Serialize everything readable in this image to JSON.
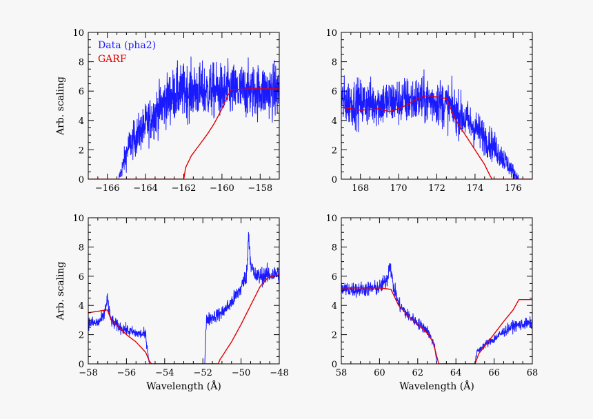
{
  "chart_data": [
    {
      "type": "line",
      "title": "",
      "xlabel": "",
      "ylabel": "Arb. scaling",
      "xlim": [
        -167,
        -157
      ],
      "ylim": [
        0,
        10
      ],
      "xticks": [
        -166,
        -164,
        -162,
        -160,
        -158
      ],
      "yticks": [
        0,
        2,
        4,
        6,
        8,
        10
      ],
      "legend": {
        "position": "top-left",
        "entries": [
          "Data (pha2)",
          "GARF"
        ]
      },
      "series": [
        {
          "name": "Data (pha2)",
          "color": "#1a1aff",
          "noise": 1.6,
          "x": [
            -165.4,
            -164.9,
            -164.3,
            -163.8,
            -163.3,
            -162.8,
            -162.3,
            -161.8,
            -161.3,
            -160.8,
            -160.3,
            -159.8,
            -159.3,
            -158.8,
            -158.3,
            -157.8,
            -157.0
          ],
          "y": [
            0.0,
            2.2,
            3.2,
            4.0,
            4.8,
            5.5,
            5.9,
            6.0,
            6.0,
            6.0,
            6.0,
            6.0,
            6.0,
            6.0,
            6.0,
            6.0,
            6.0
          ]
        },
        {
          "name": "GARF",
          "color": "#e00000",
          "x": [
            -167,
            -162.0,
            -161.9,
            -161.6,
            -161.2,
            -160.8,
            -160.4,
            -160.0,
            -159.7,
            -159.5,
            -158.5,
            -157.0
          ],
          "y": [
            0,
            0,
            0.8,
            1.6,
            2.3,
            3.0,
            3.8,
            4.8,
            5.7,
            6.1,
            6.15,
            6.15
          ]
        }
      ]
    },
    {
      "type": "line",
      "title": "",
      "xlabel": "",
      "ylabel": "",
      "xlim": [
        167,
        177
      ],
      "ylim": [
        0,
        10
      ],
      "xticks": [
        168,
        170,
        172,
        174,
        176
      ],
      "yticks": [
        0,
        2,
        4,
        6,
        8,
        10
      ],
      "series": [
        {
          "name": "Data (pha2)",
          "color": "#1a1aff",
          "noise": 1.5,
          "x": [
            167.0,
            168.0,
            169.0,
            170.0,
            171.0,
            172.0,
            172.6,
            173.2,
            173.8,
            174.4,
            175.0,
            175.5,
            176.0,
            176.3
          ],
          "y": [
            5.3,
            5.2,
            5.2,
            5.3,
            5.4,
            5.3,
            5.0,
            4.4,
            3.7,
            3.0,
            2.2,
            1.4,
            0.5,
            0.0
          ]
        },
        {
          "name": "GARF",
          "color": "#e00000",
          "x": [
            167.0,
            168.0,
            169.0,
            169.5,
            170.0,
            170.5,
            171.0,
            171.5,
            172.0,
            172.5,
            173.0,
            173.5,
            174.0,
            174.5,
            174.8,
            174.9,
            177.0
          ],
          "y": [
            4.9,
            4.7,
            4.8,
            4.6,
            4.8,
            5.1,
            5.5,
            5.7,
            5.6,
            5.5,
            4.0,
            3.0,
            2.0,
            1.0,
            0.2,
            0.0,
            0.0
          ]
        }
      ]
    },
    {
      "type": "line",
      "title": "",
      "xlabel": "Wavelength (Å)",
      "ylabel": "Arb. scaling",
      "xlim": [
        -58,
        -48
      ],
      "ylim": [
        0,
        10
      ],
      "xticks": [
        -58,
        -56,
        -54,
        -52,
        -50,
        -48
      ],
      "yticks": [
        0,
        2,
        4,
        6,
        8,
        10
      ],
      "series": [
        {
          "name": "Data (pha2)",
          "color": "#1a1aff",
          "noise": 0.55,
          "x": [
            -58.0,
            -57.5,
            -57.2,
            -57.0,
            -56.9,
            -56.8,
            -56.6,
            -56.0,
            -55.5,
            -55.0,
            -54.9,
            -54.8,
            -51.9,
            -51.85,
            -51.8,
            -51.0,
            -50.5,
            -50.0,
            -49.7,
            -49.6,
            -49.5,
            -49.3,
            -49.0,
            -48.0
          ],
          "y": [
            2.8,
            2.8,
            3.2,
            4.5,
            3.5,
            3.0,
            2.7,
            2.3,
            2.1,
            2.0,
            1.0,
            0.0,
            0.0,
            2.0,
            3.0,
            3.5,
            4.2,
            5.2,
            6.2,
            9.0,
            7.0,
            6.0,
            6.0,
            6.2
          ]
        },
        {
          "name": "GARF",
          "color": "#e00000",
          "x": [
            -58.0,
            -57.5,
            -57.0,
            -56.8,
            -56.0,
            -55.5,
            -55.0,
            -54.8,
            -54.7,
            -51.2,
            -51.1,
            -50.5,
            -50.0,
            -49.5,
            -49.0,
            -48.6,
            -48.0
          ],
          "y": [
            3.5,
            3.6,
            3.7,
            3.0,
            2.0,
            1.5,
            0.8,
            0.2,
            0.0,
            0.0,
            0.3,
            1.5,
            2.7,
            4.0,
            5.3,
            5.9,
            6.1
          ]
        }
      ]
    },
    {
      "type": "line",
      "title": "",
      "xlabel": "Wavelength (Å)",
      "ylabel": "",
      "xlim": [
        58,
        68
      ],
      "ylim": [
        0,
        10
      ],
      "xticks": [
        58,
        60,
        62,
        64,
        66,
        68
      ],
      "yticks": [
        0,
        2,
        4,
        6,
        8,
        10
      ],
      "series": [
        {
          "name": "Data (pha2)",
          "color": "#1a1aff",
          "noise": 0.5,
          "x": [
            58.0,
            59.0,
            60.0,
            60.4,
            60.55,
            60.7,
            61.0,
            61.5,
            62.0,
            62.5,
            62.9,
            63.0,
            65.0,
            65.1,
            65.5,
            66.0,
            66.5,
            67.0,
            68.0
          ],
          "y": [
            5.1,
            5.1,
            5.2,
            5.8,
            7.0,
            5.4,
            4.1,
            3.3,
            2.8,
            2.3,
            1.2,
            0.0,
            0.0,
            0.8,
            1.3,
            1.7,
            2.2,
            2.6,
            2.8
          ]
        },
        {
          "name": "GARF",
          "color": "#e00000",
          "x": [
            58.0,
            59.0,
            60.0,
            60.6,
            61.0,
            61.5,
            62.0,
            62.5,
            62.8,
            63.0,
            63.1,
            65.0,
            65.2,
            65.8,
            66.5,
            67.0,
            67.3,
            68.0
          ],
          "y": [
            5.2,
            5.2,
            5.2,
            5.1,
            4.0,
            3.3,
            2.7,
            2.1,
            1.5,
            0.5,
            0.0,
            0.0,
            0.7,
            1.7,
            2.9,
            3.7,
            4.4,
            4.4
          ]
        }
      ]
    }
  ]
}
